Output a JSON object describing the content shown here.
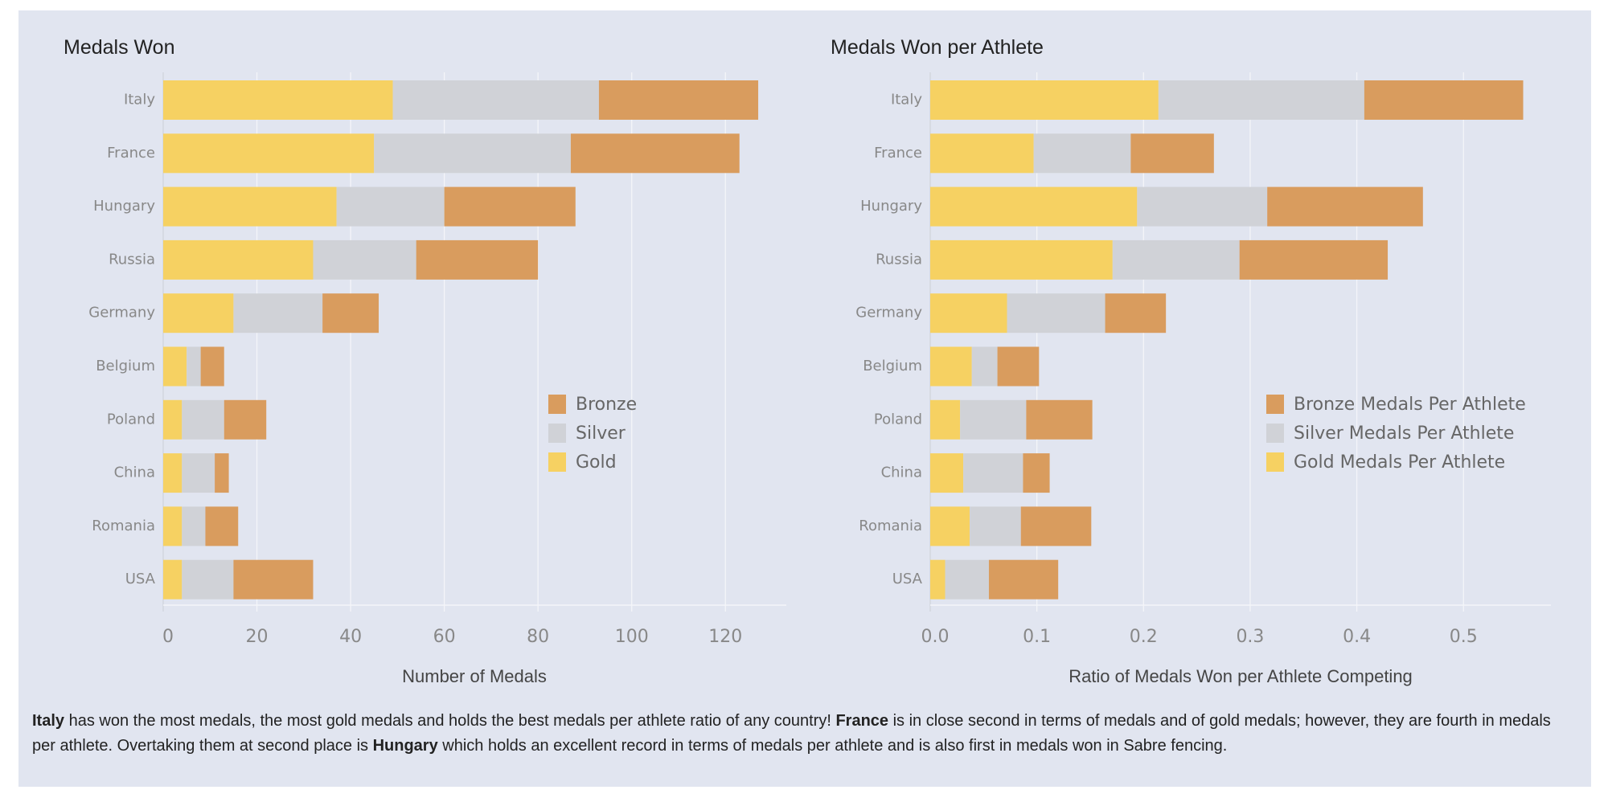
{
  "colors": {
    "gold": "#F6D162",
    "silver": "#D0D2D7",
    "bronze": "#D99C5E",
    "background": "#E1E5F0"
  },
  "chart_data": [
    {
      "type": "bar",
      "orientation": "horizontal",
      "stacked": true,
      "title": "Medals Won",
      "xlabel": "Number of Medals",
      "ylabel": "",
      "xlim": [
        0,
        133
      ],
      "xticks": [
        0,
        20,
        40,
        60,
        80,
        100,
        120
      ],
      "xtick_labels": [
        "0",
        "20",
        "40",
        "60",
        "80",
        "100",
        "120"
      ],
      "grid": true,
      "legend_position": "center-right",
      "categories": [
        "Italy",
        "France",
        "Hungary",
        "Russia",
        "Germany",
        "Belgium",
        "Poland",
        "China",
        "Romania",
        "USA"
      ],
      "series": [
        {
          "name": "Gold",
          "color_key": "gold",
          "values": [
            49,
            45,
            37,
            32,
            15,
            5,
            4,
            4,
            4,
            4
          ]
        },
        {
          "name": "Silver",
          "color_key": "silver",
          "values": [
            44,
            42,
            23,
            22,
            19,
            3,
            9,
            7,
            5,
            11
          ]
        },
        {
          "name": "Bronze",
          "color_key": "bronze",
          "values": [
            34,
            36,
            28,
            26,
            12,
            5,
            9,
            3,
            7,
            17
          ]
        }
      ],
      "legend": [
        "Bronze",
        "Silver",
        "Gold"
      ]
    },
    {
      "type": "bar",
      "orientation": "horizontal",
      "stacked": true,
      "title": "Medals Won per Athlete",
      "xlabel": "Ratio of Medals Won per Athlete Competing",
      "ylabel": "",
      "xlim": [
        0,
        0.582
      ],
      "xticks": [
        0.0,
        0.1,
        0.2,
        0.3,
        0.4,
        0.5
      ],
      "xtick_labels": [
        "0.0",
        "0.1",
        "0.2",
        "0.3",
        "0.4",
        "0.5"
      ],
      "grid": true,
      "legend_position": "center-right",
      "categories": [
        "Italy",
        "France",
        "Hungary",
        "Russia",
        "Germany",
        "Belgium",
        "Poland",
        "China",
        "Romania",
        "USA"
      ],
      "series": [
        {
          "name": "Gold Medals Per Athlete",
          "color_key": "gold",
          "values": [
            0.214,
            0.097,
            0.194,
            0.171,
            0.072,
            0.039,
            0.028,
            0.031,
            0.037,
            0.014
          ]
        },
        {
          "name": "Silver Medals Per Athlete",
          "color_key": "silver",
          "values": [
            0.193,
            0.091,
            0.122,
            0.119,
            0.092,
            0.024,
            0.062,
            0.056,
            0.048,
            0.041
          ]
        },
        {
          "name": "Bronze Medals Per Athlete",
          "color_key": "bronze",
          "values": [
            0.149,
            0.078,
            0.146,
            0.139,
            0.057,
            0.039,
            0.062,
            0.025,
            0.066,
            0.065
          ]
        }
      ],
      "legend": [
        "Bronze Medals Per Athlete",
        "Silver Medals Per Athlete",
        "Gold Medals Per Athlete"
      ]
    }
  ],
  "caption": {
    "parts": [
      {
        "text": "Italy",
        "bold": true
      },
      {
        "text": " has won the most medals, the most gold medals and holds the best medals per athlete ratio of any country! ",
        "bold": false
      },
      {
        "text": "France",
        "bold": true
      },
      {
        "text": " is in close second in terms of medals and of gold medals; however, they are fourth in medals per athlete. Overtaking them at second place is ",
        "bold": false
      },
      {
        "text": "Hungary",
        "bold": true
      },
      {
        "text": " which holds an excellent record in terms of medals per athlete and is also first in medals won in Sabre fencing.",
        "bold": false
      }
    ]
  }
}
